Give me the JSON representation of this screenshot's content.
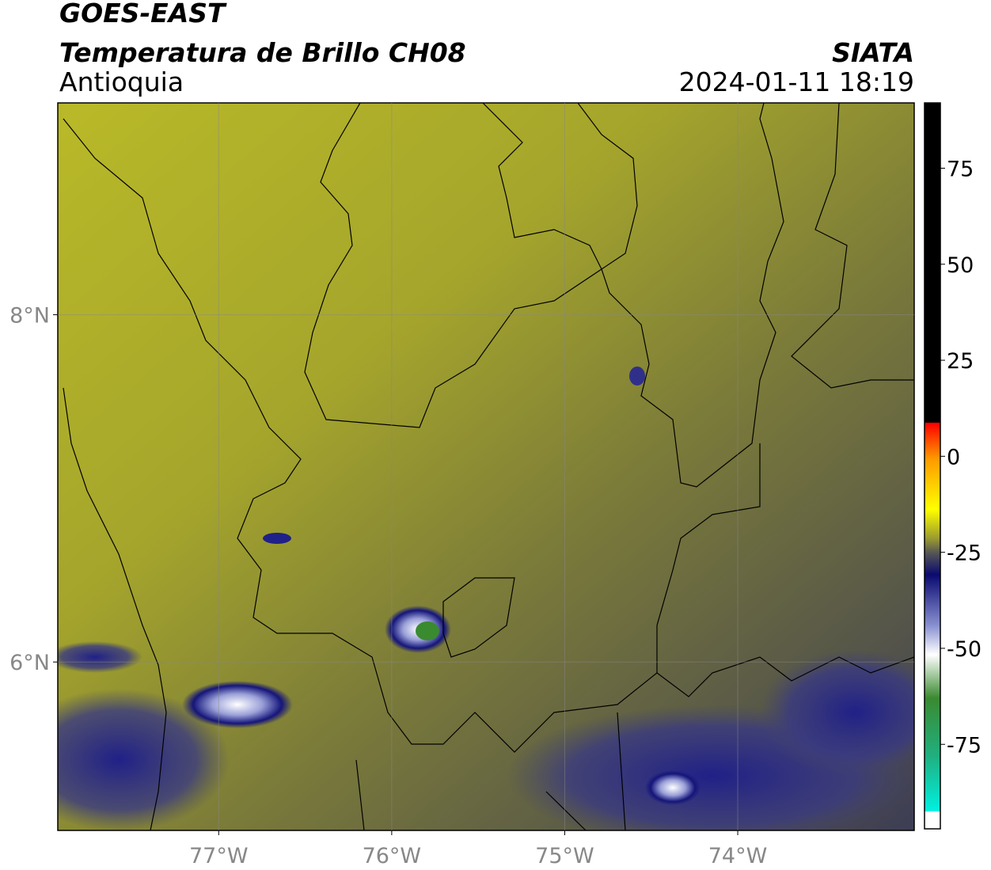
{
  "header": {
    "title": "GOES-EAST",
    "subtitle": "Temperatura de Brillo CH08",
    "region": "Antioquia",
    "source": "SIATA",
    "datetime": "2024-01-11 18:19"
  },
  "map": {
    "xlim": [
      -77.93,
      -72.98
    ],
    "ylim": [
      5.03,
      9.22
    ],
    "xticks": [
      {
        "value": -77,
        "label": "77°W"
      },
      {
        "value": -76,
        "label": "76°W"
      },
      {
        "value": -75,
        "label": "75°W"
      },
      {
        "value": -74,
        "label": "74°W"
      }
    ],
    "yticks": [
      {
        "value": 6,
        "label": "6°N"
      },
      {
        "value": 8,
        "label": "8°N"
      }
    ],
    "grid": true
  },
  "colorbar": {
    "lim": [
      -97,
      92
    ],
    "ticks": [
      75,
      50,
      25,
      0,
      -25,
      -50,
      -75
    ]
  }
}
